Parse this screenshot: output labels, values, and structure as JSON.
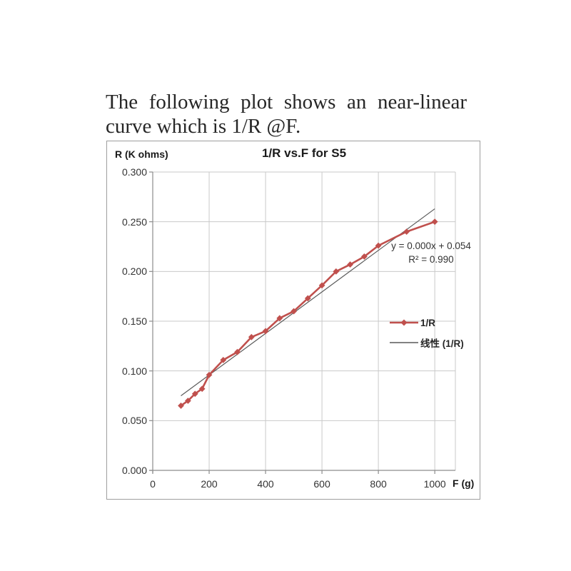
{
  "page": {
    "heading_line1": "The following plot shows an near-linear",
    "heading_line2": "curve which is 1/R @F."
  },
  "chart_data": {
    "type": "line",
    "title": "1/R vs.F for S5",
    "xlabel": "F (g)",
    "ylabel": "R (K ohms)",
    "xlim": [
      0,
      1073
    ],
    "ylim": [
      0,
      0.3
    ],
    "x_ticks": [
      "0",
      "200",
      "400",
      "600",
      "800",
      "1000"
    ],
    "x_tick_values": [
      0,
      200,
      400,
      600,
      800,
      1000
    ],
    "y_ticks": [
      "0.300",
      "0.250",
      "0.200",
      "0.150",
      "0.100",
      "0.050",
      "0.000"
    ],
    "y_tick_values": [
      0.3,
      0.25,
      0.2,
      0.15,
      0.1,
      0.05,
      0.0
    ],
    "grid": true,
    "legend_position": "right-middle",
    "series": [
      {
        "name": "1/R",
        "type": "line",
        "color": "#C0504D",
        "marker": "diamond",
        "x": [
          100,
          125,
          150,
          175,
          200,
          250,
          300,
          350,
          400,
          450,
          500,
          550,
          600,
          650,
          700,
          750,
          800,
          900,
          1000
        ],
        "y": [
          0.065,
          0.07,
          0.077,
          0.082,
          0.096,
          0.111,
          0.119,
          0.134,
          0.14,
          0.153,
          0.16,
          0.173,
          0.186,
          0.2,
          0.207,
          0.215,
          0.226,
          0.24,
          0.25
        ]
      },
      {
        "name": "线性 (1/R)",
        "type": "trendline",
        "color": "#595959",
        "x": [
          100,
          1000
        ],
        "y": [
          0.075,
          0.263
        ],
        "equation": "y = 0.000x + 0.054",
        "r_squared": "R² = 0.990"
      }
    ],
    "style": {
      "gridline_color": "#C9C9C9",
      "axis_color": "#8C8C8C",
      "tick_text_color": "#333333"
    }
  }
}
